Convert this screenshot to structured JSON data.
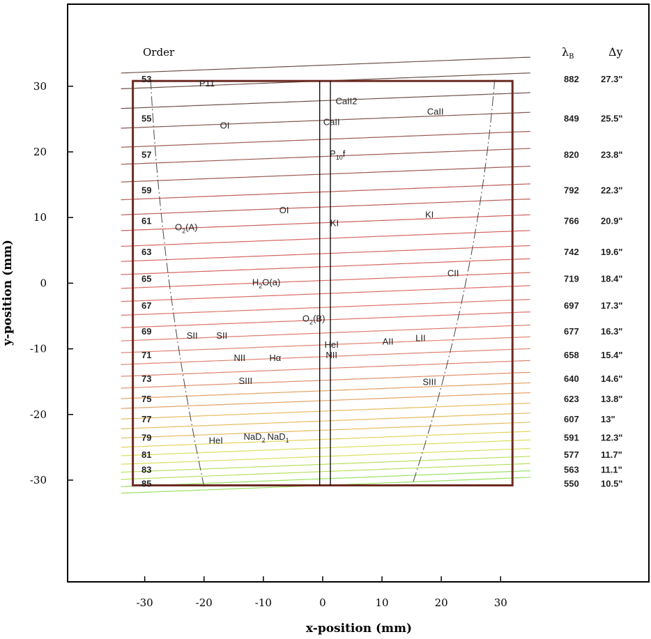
{
  "chart_data": {
    "type": "line",
    "title": "",
    "xlabel": "x-position (mm)",
    "ylabel": "y-position (mm)",
    "xlim": [
      -43,
      55
    ],
    "ylim": [
      -45.5,
      42.5
    ],
    "xticks": [
      "-30",
      "-20",
      "-10",
      "0",
      "10",
      "20",
      "30"
    ],
    "xtick_values": [
      -30,
      -20,
      -10,
      0,
      10,
      20,
      30
    ],
    "yticks": [
      "30",
      "20",
      "10",
      "0",
      "-10",
      "-20",
      "-30"
    ],
    "ytick_values": [
      30,
      20,
      10,
      0,
      -10,
      -20,
      -30
    ],
    "grid": false,
    "detector": {
      "x": [
        -32,
        32
      ],
      "y": [
        -30.8,
        30.8
      ],
      "color": "#6b2a22"
    },
    "slit": {
      "x": [
        -0.5,
        1.3
      ],
      "y": [
        -30.8,
        30.8
      ]
    },
    "column_headers": {
      "order": "Order",
      "lambda_main": "λ",
      "lambda_sub": "B",
      "dy": "Δy"
    },
    "orders": [
      {
        "order": "53",
        "lambda_B": "882",
        "dy": "27.3\"",
        "y_at_center": 30.8,
        "color": "#6d5249"
      },
      {
        "order": "55",
        "lambda_B": "849",
        "dy": "25.5\"",
        "y_at_center": 24.8,
        "color": "#82574e"
      },
      {
        "order": "57",
        "lambda_B": "820",
        "dy": "23.8\"",
        "y_at_center": 19.3,
        "color": "#9c5a52"
      },
      {
        "order": "59",
        "lambda_B": "792",
        "dy": "22.3\"",
        "y_at_center": 13.9,
        "color": "#bb5c57"
      },
      {
        "order": "61",
        "lambda_B": "766",
        "dy": "20.9\"",
        "y_at_center": 9.2,
        "color": "#cf5e5c"
      },
      {
        "order": "63",
        "lambda_B": "742",
        "dy": "19.6\"",
        "y_at_center": 4.5,
        "color": "#d76563"
      },
      {
        "order": "65",
        "lambda_B": "719",
        "dy": "18.4\"",
        "y_at_center": 0.4,
        "color": "#da6c66"
      },
      {
        "order": "67",
        "lambda_B": "697",
        "dy": "17.3\"",
        "y_at_center": -3.7,
        "color": "#dc726a"
      },
      {
        "order": "69",
        "lambda_B": "677",
        "dy": "16.3\"",
        "y_at_center": -7.6,
        "color": "#de7a6d"
      },
      {
        "order": "71",
        "lambda_B": "658",
        "dy": "15.4\"",
        "y_at_center": -11.2,
        "color": "#df8370"
      },
      {
        "order": "73",
        "lambda_B": "640",
        "dy": "14.6\"",
        "y_at_center": -14.8,
        "color": "#e08f6f"
      },
      {
        "order": "75",
        "lambda_B": "623",
        "dy": "13.8\"",
        "y_at_center": -17.9,
        "color": "#e2a265"
      },
      {
        "order": "77",
        "lambda_B": "607",
        "dy": "13\"",
        "y_at_center": -21.0,
        "color": "#e6bb5e"
      },
      {
        "order": "79",
        "lambda_B": "591",
        "dy": "12.3\"",
        "y_at_center": -23.8,
        "color": "#e6d35a"
      },
      {
        "order": "81",
        "lambda_B": "577",
        "dy": "11.7\"",
        "y_at_center": -26.4,
        "color": "#d9e05b"
      },
      {
        "order": "83",
        "lambda_B": "563",
        "dy": "11.1\"",
        "y_at_center": -28.7,
        "color": "#b8e05d"
      },
      {
        "order": "85",
        "lambda_B": "550",
        "dy": "10.5\"",
        "y_at_center": -30.8,
        "color": "#9be061"
      }
    ],
    "intermediate_traces_y_at_center": [
      33.2,
      27.8,
      21.9,
      16.6,
      11.6,
      6.8,
      2.5,
      -1.6,
      -5.6,
      -9.4,
      -13.0,
      -16.4,
      -19.5,
      -22.4,
      -25.1,
      -27.6,
      -29.8
    ],
    "trace_extent_x": [
      -34,
      35
    ],
    "trace_curvature": 9e-05,
    "trace_tilt": 0.035,
    "boundary_curves": {
      "left": {
        "x_top": -29,
        "x_bottom": -20
      },
      "right": {
        "x_top": 29,
        "x_bottom": 15
      },
      "y_range": [
        31,
        -31
      ]
    },
    "annotations": [
      {
        "text": "P11",
        "x": -19.5,
        "y": 30.5
      },
      {
        "text": "CaII2",
        "x": 4,
        "y": 27.8
      },
      {
        "text": "CaII",
        "x": 19,
        "y": 26.2
      },
      {
        "text": "OI",
        "x": -16.5,
        "y": 24.1
      },
      {
        "text": "CaII",
        "x": 1.5,
        "y": 24.6
      },
      {
        "text": "P",
        "sub": "10",
        "after": "f",
        "x": 2.5,
        "y": 19.8
      },
      {
        "text": "OI",
        "x": -6.5,
        "y": 11.2
      },
      {
        "text": "KI",
        "x": 2,
        "y": 9.2
      },
      {
        "text": "KI",
        "x": 18,
        "y": 10.5
      },
      {
        "text": "O",
        "sub": "2",
        "after": "(A)",
        "x": -23,
        "y": 8.6
      },
      {
        "text": "CII",
        "x": 22,
        "y": 1.6
      },
      {
        "text": "H",
        "sub": "2",
        "after": "O(a)",
        "x": -9.5,
        "y": 0.2
      },
      {
        "text": "O",
        "sub": "2",
        "after": "(B)",
        "x": -1.5,
        "y": -5.3
      },
      {
        "text": "SII",
        "x": -22,
        "y": -7.9
      },
      {
        "text": "SII",
        "x": -17,
        "y": -7.9
      },
      {
        "text": "HeI",
        "x": 1.5,
        "y": -9.3
      },
      {
        "text": "AII",
        "x": 11,
        "y": -8.8
      },
      {
        "text": "LII",
        "x": 16.5,
        "y": -8.3
      },
      {
        "text": "NII",
        "x": 1.5,
        "y": -10.9
      },
      {
        "text": "NII",
        "x": -14,
        "y": -11.3
      },
      {
        "text": "Hα",
        "x": -8,
        "y": -11.3
      },
      {
        "text": "SIII",
        "x": -13,
        "y": -14.8
      },
      {
        "text": "SIII",
        "x": 18,
        "y": -15.0
      },
      {
        "text": "HeI",
        "x": -18,
        "y": -23.9
      },
      {
        "text": "NaD",
        "sub": "2",
        "after": "",
        "x": -11.5,
        "y": -23.3
      },
      {
        "text": "NaD",
        "sub": "1",
        "after": "",
        "x": -7.5,
        "y": -23.3
      }
    ]
  }
}
